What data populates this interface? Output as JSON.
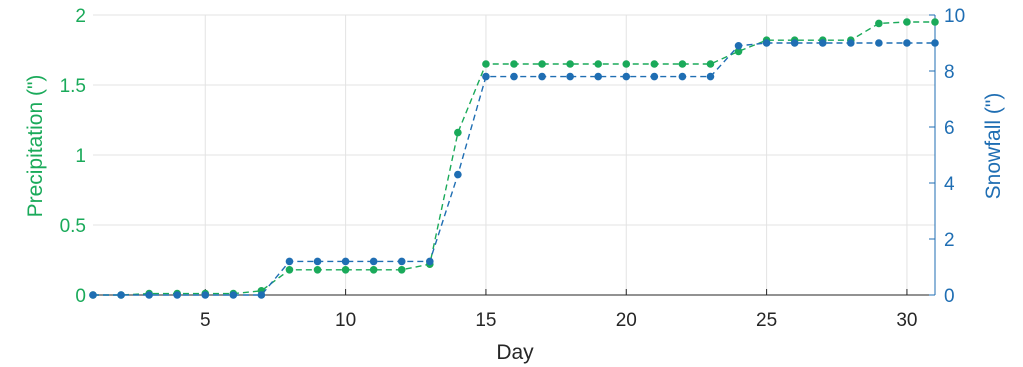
{
  "chart_data": {
    "type": "line",
    "xlabel": "Day",
    "ylabel_left": "Precipitation (\")",
    "ylabel_right": "Snowfall (\")",
    "xlim": [
      1,
      31
    ],
    "ylim_left": [
      0,
      2
    ],
    "ylim_right": [
      0,
      10
    ],
    "xticks": [
      5,
      10,
      15,
      20,
      25,
      30
    ],
    "yticks_left": [
      0,
      0.5,
      1,
      1.5,
      2
    ],
    "yticks_left_labels": [
      "0",
      "0.5",
      "1",
      "1.5",
      "2"
    ],
    "yticks_right": [
      0,
      2,
      4,
      6,
      8,
      10
    ],
    "grid": true,
    "x": [
      1,
      2,
      3,
      4,
      5,
      6,
      7,
      8,
      9,
      10,
      11,
      12,
      13,
      14,
      15,
      16,
      17,
      18,
      19,
      20,
      21,
      22,
      23,
      24,
      25,
      26,
      27,
      28,
      29,
      30,
      31
    ],
    "series": [
      {
        "axis": "left",
        "color": "#1aaa5a",
        "style": "dashed-with-markers",
        "values": [
          0,
          0,
          0.01,
          0.01,
          0.01,
          0.01,
          0.03,
          0.18,
          0.18,
          0.18,
          0.18,
          0.18,
          0.22,
          1.16,
          1.65,
          1.65,
          1.65,
          1.65,
          1.65,
          1.65,
          1.65,
          1.65,
          1.65,
          1.74,
          1.82,
          1.82,
          1.82,
          1.82,
          1.94,
          1.95,
          1.95
        ]
      },
      {
        "axis": "right",
        "color": "#1f6eb3",
        "style": "dashed-with-markers",
        "values": [
          0,
          0,
          0,
          0,
          0,
          0,
          0,
          1.2,
          1.2,
          1.2,
          1.2,
          1.2,
          1.2,
          4.3,
          7.8,
          7.8,
          7.8,
          7.8,
          7.8,
          7.8,
          7.8,
          7.8,
          7.8,
          8.9,
          9.0,
          9.0,
          9.0,
          9.0,
          9.0,
          9.0,
          9.0
        ]
      }
    ]
  }
}
